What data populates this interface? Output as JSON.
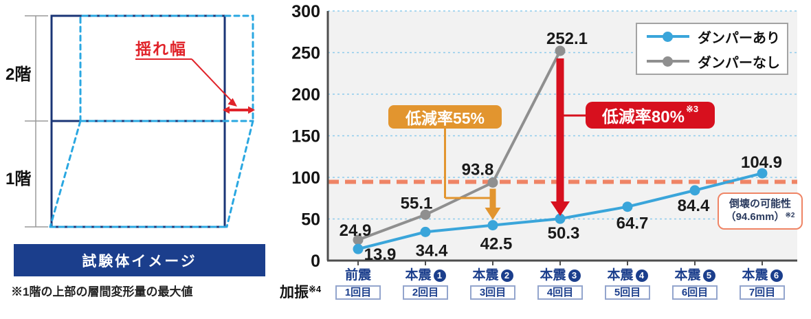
{
  "diagram": {
    "floor2_label": "2階",
    "floor1_label": "1階",
    "sway_label": "揺れ幅",
    "banner_label": "試験体イメージ",
    "footnote": "※1階の上部の層間変形量の最大値",
    "colors": {
      "frame_navy": "#1a3576",
      "deformed_cyan": "#2aa7e1",
      "accent_red": "#e0232a",
      "banner_bg": "#1b3e8c"
    }
  },
  "chart_data": {
    "type": "line",
    "title": "",
    "xlabel": "加振",
    "xlabel_note": "※4",
    "ylabel": "",
    "ylim": [
      0,
      300
    ],
    "y_ticks": [
      300,
      250,
      200,
      150,
      100,
      50,
      0
    ],
    "grid": "horizontal-dotted",
    "legend_position": "top-right",
    "plot_bg": "#f2f2f2",
    "gridline_color": "#8ecbec",
    "categories": [
      {
        "main": "前震",
        "circled_num": "",
        "sub": "1回目"
      },
      {
        "main": "本震",
        "circled_num": "1",
        "sub": "2回目"
      },
      {
        "main": "本震",
        "circled_num": "2",
        "sub": "3回目"
      },
      {
        "main": "本震",
        "circled_num": "3",
        "sub": "4回目"
      },
      {
        "main": "本震",
        "circled_num": "4",
        "sub": "5回目"
      },
      {
        "main": "本震",
        "circled_num": "5",
        "sub": "6回目"
      },
      {
        "main": "本震",
        "circled_num": "6",
        "sub": "7回目"
      }
    ],
    "series": [
      {
        "name": "ダンパーあり",
        "color": "#3aa5da",
        "values": [
          13.9,
          34.4,
          42.5,
          50.3,
          64.7,
          84.4,
          104.9
        ]
      },
      {
        "name": "ダンパーなし",
        "color": "#8f8f8f",
        "values": [
          24.9,
          55.1,
          93.8,
          252.1
        ]
      }
    ],
    "threshold": {
      "value": 94.6,
      "color": "#ef8465",
      "label_line1": "倒壊の可能性",
      "label_line2": "（94.6mm）",
      "label_sup": "※2"
    },
    "annotations": [
      {
        "text": "低減率55%",
        "sup": "",
        "color": "#e2952f",
        "category_index": 2
      },
      {
        "text": "低減率80%",
        "sup": "※3",
        "color": "#d7101e",
        "category_index": 3
      }
    ]
  }
}
